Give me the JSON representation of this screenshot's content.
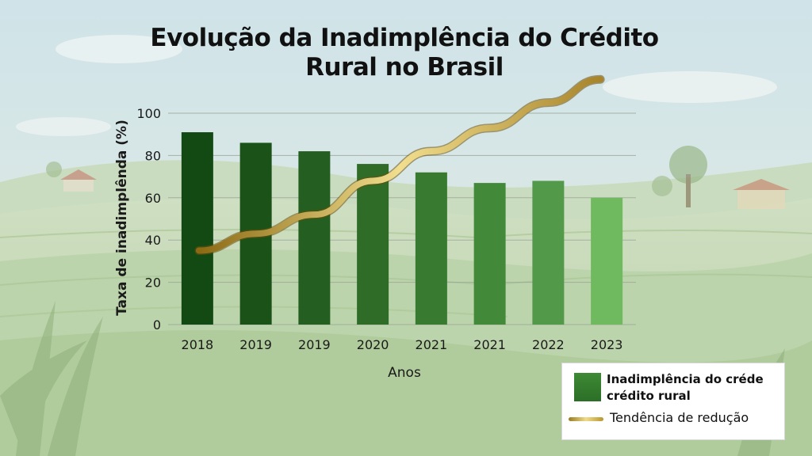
{
  "title_line1": "Evolução da Inadimplência do Crédito",
  "title_line2": "Rural no Brasil",
  "legend": {
    "bar_label": "Inadimplência do créde crédito rural",
    "line_label": "Tendência de redução"
  },
  "chart_data": {
    "type": "bar",
    "title": "Evolução da Inadimplência do Crédito Rural no Brasil",
    "xlabel": "Anos",
    "ylabel": "Taxa de inadimplênda (%)",
    "ylim": [
      0,
      100
    ],
    "yticks": [
      0,
      20,
      40,
      60,
      80,
      100
    ],
    "grid": true,
    "legend_position": "bottom-right",
    "categories": [
      "2018",
      "2019",
      "2019",
      "2020",
      "2021",
      "2021",
      "2022",
      "2023"
    ],
    "series": [
      {
        "name": "Inadimplência do créde crédito rural",
        "type": "bar",
        "values": [
          91,
          86,
          82,
          76,
          72,
          67,
          68,
          60
        ],
        "colors": [
          "#134a14",
          "#1a5218",
          "#245e20",
          "#2e6c28",
          "#377a30",
          "#43893a",
          "#52994a",
          "#6fb95f"
        ]
      },
      {
        "name": "Tendência de redução",
        "type": "line",
        "values": [
          35,
          43,
          52,
          68,
          82,
          93,
          105,
          116
        ],
        "color": "#b8962e"
      }
    ]
  }
}
